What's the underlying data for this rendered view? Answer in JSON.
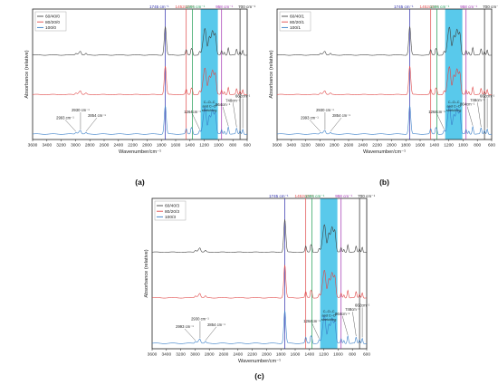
{
  "chart_data": [
    {
      "type": "line",
      "panel_label": "(a)",
      "xlabel": "Wavenumber/cm⁻¹",
      "ylabel": "Absorbance (relative)",
      "x_ticks": [
        "3600",
        "3400",
        "3200",
        "3000",
        "2800",
        "2600",
        "2400",
        "2200",
        "2000",
        "1800",
        "1600",
        "1400",
        "1200",
        "1000",
        "800",
        "600"
      ],
      "xlim": [
        3600,
        600
      ],
      "legend": [
        "60/40/0",
        "80/20/0",
        "100/0"
      ],
      "legend_position": "top-left",
      "series": [
        {
          "name": "60/40/0",
          "color": "#444444",
          "offset": 2
        },
        {
          "name": "80/20/0",
          "color": "#e04848",
          "offset": 1
        },
        {
          "name": "100/0",
          "color": "#3a7fc8",
          "offset": 0
        }
      ],
      "reference_lines": [
        {
          "label": "1745 cm⁻¹",
          "x": 1745,
          "color": "#2a2aaa"
        },
        {
          "label": "1452cm⁻¹",
          "x": 1452,
          "color": "#e04848"
        },
        {
          "label": "1366 cm⁻¹",
          "x": 1366,
          "color": "#1a9a50"
        },
        {
          "label": "958 cm⁻¹",
          "x": 958,
          "color": "#a030b0"
        },
        {
          "label": "700 cm⁻¹",
          "x": 700,
          "color": "#222222"
        }
      ],
      "shaded_region": {
        "from": 1250,
        "to": 1010,
        "label": "C–O–C and C–O stretching"
      },
      "annotations": [
        "2993 cm⁻¹",
        "2930 cm⁻¹",
        "2854 cm⁻¹",
        "1264cm⁻¹",
        "864cm⁻¹",
        "748cm⁻¹",
        "662cm⁻¹"
      ]
    },
    {
      "type": "line",
      "panel_label": "(b)",
      "xlabel": "Wavenumber/cm⁻¹",
      "ylabel": "Absorbance (relative)",
      "x_ticks": [
        "3600",
        "3400",
        "3200",
        "3000",
        "2800",
        "2600",
        "2400",
        "2200",
        "2000",
        "1800",
        "1600",
        "1400",
        "1200",
        "1000",
        "800",
        "600"
      ],
      "xlim": [
        3600,
        600
      ],
      "legend": [
        "60/40/1",
        "80/20/1",
        "100/1"
      ],
      "legend_position": "top-left",
      "series": [
        {
          "name": "60/40/1",
          "color": "#444444",
          "offset": 2
        },
        {
          "name": "80/20/1",
          "color": "#e04848",
          "offset": 1
        },
        {
          "name": "100/1",
          "color": "#3a7fc8",
          "offset": 0
        }
      ],
      "reference_lines": [
        {
          "label": "1745 cm⁻¹",
          "x": 1745,
          "color": "#2a2aaa"
        },
        {
          "label": "1452cm⁻¹",
          "x": 1452,
          "color": "#e04848"
        },
        {
          "label": "1366 cm⁻¹",
          "x": 1366,
          "color": "#1a9a50"
        },
        {
          "label": "958 cm⁻¹",
          "x": 958,
          "color": "#a030b0"
        },
        {
          "label": "700 cm⁻¹",
          "x": 700,
          "color": "#222222"
        }
      ],
      "shaded_region": {
        "from": 1250,
        "to": 1010,
        "label": "C–O–C and C–O stretching"
      },
      "annotations": [
        "2993 cm⁻¹",
        "2930 cm⁻¹",
        "2854 cm⁻¹",
        "1264cm⁻¹",
        "864cm⁻¹",
        "748cm⁻¹",
        "662cm⁻¹"
      ]
    },
    {
      "type": "line",
      "panel_label": "(c)",
      "xlabel": "Wavenumber/cm⁻¹",
      "ylabel": "Absorbance (relative)",
      "x_ticks": [
        "3600",
        "3400",
        "3200",
        "3000",
        "2800",
        "2600",
        "2400",
        "2200",
        "2000",
        "1800",
        "1600",
        "1400",
        "1200",
        "1000",
        "800",
        "600"
      ],
      "xlim": [
        3600,
        600
      ],
      "legend": [
        "60/40/3",
        "80/20/3",
        "100/3"
      ],
      "legend_position": "top-left",
      "series": [
        {
          "name": "60/40/3",
          "color": "#444444",
          "offset": 2
        },
        {
          "name": "80/20/3",
          "color": "#e04848",
          "offset": 1
        },
        {
          "name": "100/3",
          "color": "#3a7fc8",
          "offset": 0
        }
      ],
      "reference_lines": [
        {
          "label": "1745 cm⁻¹",
          "x": 1745,
          "color": "#2a2aaa"
        },
        {
          "label": "1452cm⁻¹",
          "x": 1452,
          "color": "#e04848"
        },
        {
          "label": "1366 cm⁻¹",
          "x": 1366,
          "color": "#1a9a50"
        },
        {
          "label": "958 cm⁻¹",
          "x": 958,
          "color": "#a030b0"
        },
        {
          "label": "700 cm⁻¹",
          "x": 700,
          "color": "#222222"
        }
      ],
      "shaded_region": {
        "from": 1250,
        "to": 1010,
        "label": "C–O–C and C–O stretching"
      },
      "annotations": [
        "2993 cm⁻¹",
        "2930 cm⁻¹",
        "2854 cm⁻¹",
        "1264cm⁻¹",
        "864cm⁻¹",
        "748cm⁻¹",
        "662cm⁻¹"
      ]
    }
  ],
  "colors": {
    "shade": "#3cc0e8",
    "axis": "#222222"
  }
}
